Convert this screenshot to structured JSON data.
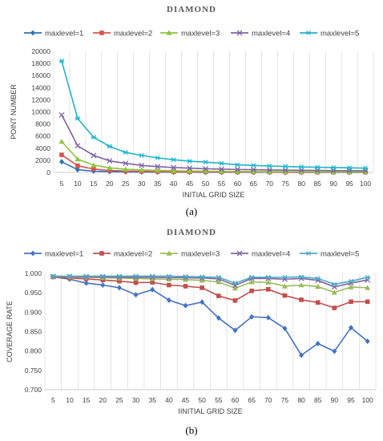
{
  "chart_data": [
    {
      "type": "line",
      "title": "DIAMOND",
      "panel_label": "(a)",
      "xlabel": "INITIAL GRID SIZE",
      "ylabel": "POINT NUMBER",
      "ylim": [
        0,
        20000
      ],
      "yticks": [
        0,
        2000,
        4000,
        6000,
        8000,
        10000,
        12000,
        14000,
        16000,
        18000,
        20000
      ],
      "grid": "vertical",
      "legend": "top",
      "categories": [
        5,
        10,
        15,
        20,
        25,
        30,
        35,
        40,
        45,
        50,
        55,
        60,
        65,
        70,
        75,
        80,
        85,
        90,
        95,
        100
      ],
      "series": [
        {
          "name": "maxlevel=1",
          "color": "#2e75b6",
          "marker": "diamond",
          "values": [
            1750,
            450,
            200,
            120,
            80,
            60,
            45,
            40,
            35,
            30,
            25,
            22,
            20,
            18,
            16,
            15,
            14,
            13,
            12,
            11
          ]
        },
        {
          "name": "maxlevel=2",
          "color": "#d9534f",
          "marker": "square",
          "values": [
            2900,
            1100,
            550,
            330,
            220,
            170,
            130,
            110,
            95,
            80,
            70,
            60,
            55,
            50,
            45,
            42,
            40,
            38,
            35,
            33
          ]
        },
        {
          "name": "maxlevel=3",
          "color": "#8dc63f",
          "marker": "triangle",
          "values": [
            5100,
            2200,
            1200,
            750,
            520,
            400,
            320,
            270,
            230,
            200,
            180,
            160,
            145,
            130,
            120,
            110,
            100,
            95,
            90,
            85
          ]
        },
        {
          "name": "maxlevel=4",
          "color": "#8064a2",
          "marker": "x",
          "values": [
            9500,
            4400,
            2800,
            1900,
            1500,
            1150,
            950,
            800,
            700,
            600,
            540,
            480,
            450,
            400,
            370,
            340,
            320,
            300,
            280,
            270
          ]
        },
        {
          "name": "maxlevel=5",
          "color": "#1fb5c9",
          "marker": "star",
          "values": [
            18400,
            8900,
            5800,
            4300,
            3300,
            2800,
            2400,
            2100,
            1850,
            1700,
            1500,
            1250,
            1150,
            1050,
            980,
            900,
            850,
            800,
            750,
            700
          ]
        }
      ]
    },
    {
      "type": "line",
      "title": "DIAMOND",
      "panel_label": "(b)",
      "xlabel": "IINITIAL GRID SIZE",
      "ylabel": "COVERAGE RATE",
      "ylim": [
        0.7,
        1.0
      ],
      "yticks": [
        "0.700",
        "0.750",
        "0.800",
        "0.850",
        "0.900",
        "0.950",
        "1.000"
      ],
      "grid": "vertical",
      "legend": "top",
      "categories": [
        5,
        10,
        15,
        20,
        25,
        30,
        35,
        40,
        45,
        50,
        55,
        60,
        65,
        70,
        75,
        80,
        85,
        90,
        95,
        100
      ],
      "series": [
        {
          "name": "maxlevel=1",
          "color": "#4472c4",
          "marker": "diamond",
          "values": [
            0.991,
            0.985,
            0.975,
            0.97,
            0.963,
            0.945,
            0.958,
            0.931,
            0.917,
            0.926,
            0.885,
            0.853,
            0.888,
            0.886,
            0.858,
            0.789,
            0.819,
            0.799,
            0.86,
            0.825
          ]
        },
        {
          "name": "maxlevel=2",
          "color": "#c0504d",
          "marker": "square",
          "values": [
            0.991,
            0.988,
            0.986,
            0.983,
            0.98,
            0.976,
            0.977,
            0.97,
            0.967,
            0.963,
            0.942,
            0.93,
            0.955,
            0.959,
            0.943,
            0.932,
            0.925,
            0.911,
            0.927,
            0.927
          ]
        },
        {
          "name": "maxlevel=3",
          "color": "#9bbb59",
          "marker": "triangle",
          "values": [
            0.992,
            0.991,
            0.99,
            0.989,
            0.988,
            0.987,
            0.986,
            0.985,
            0.984,
            0.982,
            0.978,
            0.962,
            0.978,
            0.977,
            0.967,
            0.97,
            0.966,
            0.951,
            0.965,
            0.963
          ]
        },
        {
          "name": "maxlevel=4",
          "color": "#8064a2",
          "marker": "x",
          "values": [
            0.992,
            0.992,
            0.991,
            0.991,
            0.99,
            0.99,
            0.99,
            0.989,
            0.989,
            0.988,
            0.986,
            0.969,
            0.987,
            0.987,
            0.985,
            0.987,
            0.982,
            0.965,
            0.975,
            0.983
          ]
        },
        {
          "name": "maxlevel=5",
          "color": "#4bacc6",
          "marker": "star",
          "values": [
            0.993,
            0.993,
            0.993,
            0.993,
            0.993,
            0.993,
            0.993,
            0.993,
            0.992,
            0.991,
            0.99,
            0.975,
            0.99,
            0.99,
            0.99,
            0.991,
            0.987,
            0.972,
            0.98,
            0.99
          ]
        }
      ]
    }
  ]
}
